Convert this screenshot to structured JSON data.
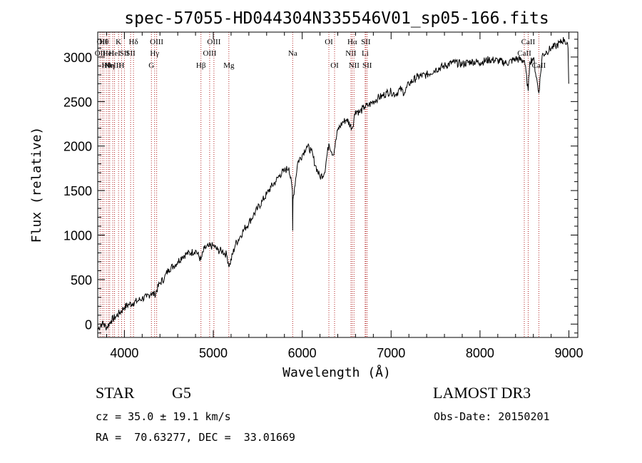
{
  "chart_data": {
    "type": "line",
    "title": "spec-57055-HD044304N335546V01_sp05-166.fits",
    "xlabel": "Wavelength (Å)",
    "ylabel": "Flux (relative)",
    "xlim": [
      3700,
      9100
    ],
    "ylim": [
      -150,
      3280
    ],
    "xticks": [
      4000,
      5000,
      6000,
      7000,
      8000,
      9000
    ],
    "yticks": [
      0,
      500,
      1000,
      1500,
      2000,
      2500,
      3000
    ],
    "grid": false,
    "series": [
      {
        "name": "flux",
        "x": [
          3700,
          3750,
          3800,
          3850,
          3900,
          3950,
          4000,
          4050,
          4100,
          4150,
          4200,
          4250,
          4300,
          4340,
          4400,
          4450,
          4500,
          4550,
          4600,
          4650,
          4700,
          4750,
          4800,
          4860,
          4900,
          4950,
          5000,
          5050,
          5100,
          5150,
          5180,
          5250,
          5300,
          5350,
          5400,
          5450,
          5500,
          5550,
          5600,
          5650,
          5700,
          5750,
          5800,
          5850,
          5890,
          5893,
          5896,
          5950,
          6000,
          6050,
          6100,
          6150,
          6200,
          6250,
          6300,
          6350,
          6400,
          6450,
          6500,
          6563,
          6600,
          6650,
          6700,
          6750,
          6800,
          6850,
          6900,
          6950,
          7000,
          7050,
          7100,
          7150,
          7200,
          7300,
          7400,
          7500,
          7600,
          7700,
          7800,
          7900,
          8000,
          8100,
          8200,
          8300,
          8400,
          8500,
          8542,
          8560,
          8600,
          8662,
          8700,
          8750,
          8800,
          8850,
          8900,
          8950,
          8990,
          8998
        ],
        "y": [
          -60,
          10,
          -40,
          40,
          80,
          130,
          190,
          220,
          240,
          260,
          290,
          300,
          350,
          330,
          460,
          520,
          620,
          650,
          700,
          760,
          790,
          800,
          830,
          720,
          850,
          870,
          880,
          830,
          820,
          780,
          650,
          900,
          980,
          1070,
          1140,
          1220,
          1300,
          1380,
          1460,
          1540,
          1600,
          1680,
          1720,
          1760,
          1500,
          1050,
          1400,
          1820,
          1900,
          2000,
          1950,
          1780,
          1650,
          1700,
          2030,
          1900,
          2180,
          2260,
          2300,
          2200,
          2400,
          2380,
          2440,
          2460,
          2500,
          2540,
          2560,
          2600,
          2610,
          2580,
          2640,
          2600,
          2700,
          2780,
          2800,
          2860,
          2900,
          2940,
          2920,
          2950,
          2940,
          2970,
          2960,
          2930,
          2980,
          2960,
          2620,
          2950,
          2990,
          2600,
          3020,
          3060,
          3100,
          3120,
          3160,
          3200,
          3100,
          2700
        ]
      }
    ],
    "lines": [
      {
        "wave": 3727,
        "row": 2,
        "label": "OII"
      },
      {
        "wave": 3750,
        "row": 1,
        "label": "OII"
      },
      {
        "wave": 3770,
        "row": 1,
        "label": "Hθ"
      },
      {
        "wave": 3797,
        "row": 3,
        "label": "Hθ"
      },
      {
        "wave": 3820,
        "row": 2,
        "label": "HeI"
      },
      {
        "wave": 3835,
        "row": 3,
        "label": "Hη"
      },
      {
        "wave": 3869,
        "row": 3,
        "label": "NeIII"
      },
      {
        "wave": 3889,
        "row": 2,
        "label": "HeI"
      },
      {
        "wave": 3934,
        "row": 1,
        "label": "K"
      },
      {
        "wave": 3969,
        "row": 3,
        "label": "H"
      },
      {
        "wave": 4000,
        "row": 2,
        "label": "SII"
      },
      {
        "wave": 4102,
        "row": 1,
        "label": "Hδ"
      },
      {
        "wave": 4070,
        "row": 2,
        "label": "SII"
      },
      {
        "wave": 4304,
        "row": 3,
        "label": "G"
      },
      {
        "wave": 4340,
        "row": 2,
        "label": "Hγ"
      },
      {
        "wave": 4363,
        "row": 1,
        "label": "OIII"
      },
      {
        "wave": 4861,
        "row": 3,
        "label": "Hβ"
      },
      {
        "wave": 4959,
        "row": 2,
        "label": "OIII"
      },
      {
        "wave": 5007,
        "row": 1,
        "label": "OIII"
      },
      {
        "wave": 5175,
        "row": 3,
        "label": "Mg"
      },
      {
        "wave": 5893,
        "row": 2,
        "label": "Na"
      },
      {
        "wave": 6300,
        "row": 1,
        "label": "OI"
      },
      {
        "wave": 6364,
        "row": 3,
        "label": "OI"
      },
      {
        "wave": 6548,
        "row": 2,
        "label": "NII"
      },
      {
        "wave": 6563,
        "row": 1,
        "label": "Hα"
      },
      {
        "wave": 6583,
        "row": 3,
        "label": "NII"
      },
      {
        "wave": 6708,
        "row": 2,
        "label": "Li"
      },
      {
        "wave": 6716,
        "row": 1,
        "label": "SII"
      },
      {
        "wave": 6731,
        "row": 3,
        "label": "SII"
      },
      {
        "wave": 8498,
        "row": 2,
        "label": "CaII"
      },
      {
        "wave": 8542,
        "row": 1,
        "label": "CaII"
      },
      {
        "wave": 8662,
        "row": 3,
        "label": "CaII"
      }
    ]
  },
  "info": {
    "object_class": "STAR",
    "subclass": "G5",
    "survey": "LAMOST DR3",
    "cz": "cz = 35.0 ± 19.1 km/s",
    "obs_date": "Obs-Date: 20150201",
    "coords": "RA =  70.63277, DEC =  33.01669"
  },
  "colors": {
    "axis": "#000000",
    "line_markers": "#b22222",
    "spectrum": "#000000"
  }
}
